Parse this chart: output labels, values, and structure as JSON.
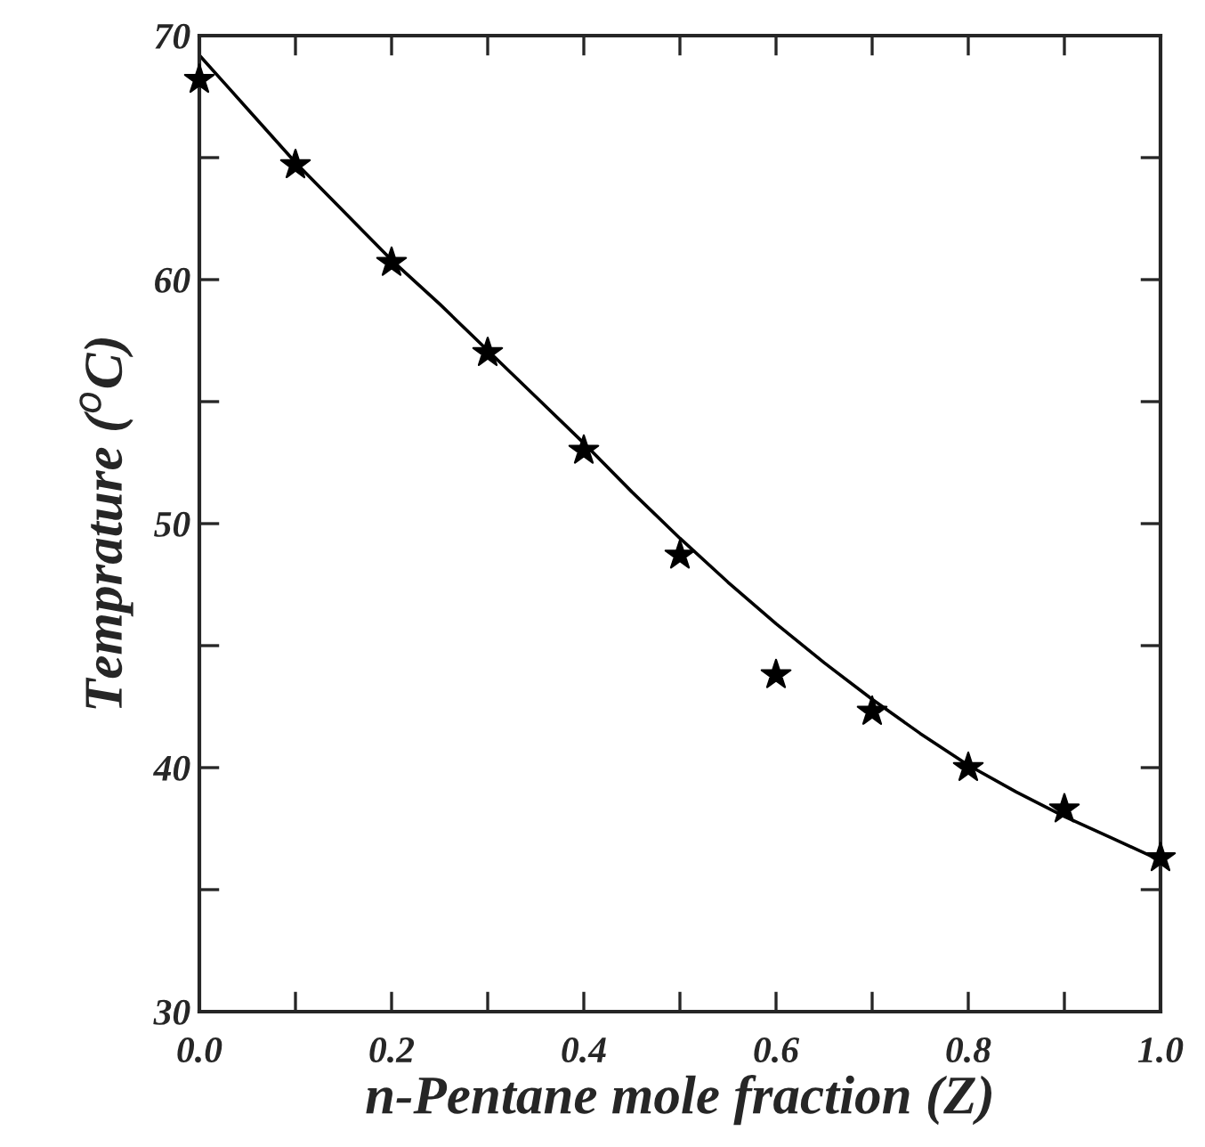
{
  "chart_data": {
    "type": "scatter",
    "xlabel": "n-Pentane mole fraction (Z)",
    "ylabel": "Temprature ($^{o}$C)",
    "x": [
      0.0,
      0.1,
      0.2,
      0.3,
      0.4,
      0.5,
      0.6,
      0.7,
      0.8,
      0.9,
      1.0
    ],
    "series": [
      {
        "color": "#000000",
        "marker": "star",
        "values": [
          68.2,
          64.7,
          60.7,
          57.0,
          53.0,
          48.7,
          43.8,
          42.3,
          40.0,
          38.3,
          36.3
        ]
      },
      {
        "type": "line",
        "color": "#000000",
        "line_style": "solid",
        "x": [
          0.0,
          0.05,
          0.1,
          0.15,
          0.2,
          0.25,
          0.3,
          0.35,
          0.4,
          0.45,
          0.5,
          0.55,
          0.6,
          0.65,
          0.7,
          0.75,
          0.8,
          0.85,
          0.9,
          0.95,
          1.0
        ],
        "values": [
          69.2,
          67.0,
          64.8,
          62.8,
          60.8,
          59.0,
          57.1,
          55.2,
          53.3,
          51.3,
          49.4,
          47.6,
          45.9,
          44.3,
          42.8,
          41.4,
          40.1,
          39.0,
          38.0,
          37.1,
          36.2
        ]
      }
    ],
    "xlim": [
      0.0,
      1.0
    ],
    "ylim": [
      30,
      70
    ],
    "xticks": [
      {
        "value": 0.0,
        "label": "0.0"
      },
      {
        "value": 0.1,
        "label": null
      },
      {
        "value": 0.2,
        "label": "0.2"
      },
      {
        "value": 0.3,
        "label": null
      },
      {
        "value": 0.4,
        "label": "0.4"
      },
      {
        "value": 0.5,
        "label": null
      },
      {
        "value": 0.6,
        "label": "0.6"
      },
      {
        "value": 0.7,
        "label": null
      },
      {
        "value": 0.8,
        "label": "0.8"
      },
      {
        "value": 0.9,
        "label": null
      },
      {
        "value": 1.0,
        "label": "1.0"
      }
    ],
    "yticks": [
      30,
      {
        "value": 35,
        "label": null
      },
      40,
      {
        "value": 45,
        "label": null
      },
      50,
      {
        "value": 55,
        "label": null
      },
      60,
      {
        "value": 65,
        "label": null
      },
      70
    ],
    "grid": false
  }
}
